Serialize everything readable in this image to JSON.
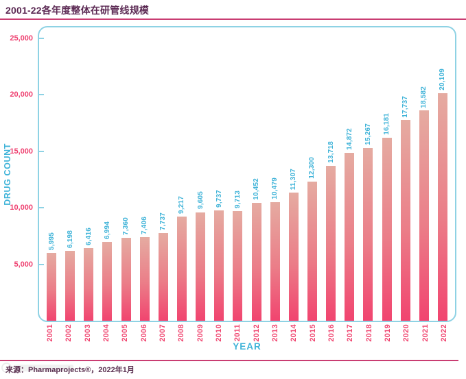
{
  "page": {
    "title": "2001-22各年度整体在研管线规模",
    "source_text": "来源：Pharmaprojects®，2022年1月"
  },
  "chart_data": {
    "type": "bar",
    "title": "2001-22各年度整体在研管线规模",
    "xlabel": "YEAR",
    "ylabel": "DRUG COUNT",
    "categories": [
      "2001",
      "2002",
      "2003",
      "2004",
      "2005",
      "2006",
      "2007",
      "2008",
      "2009",
      "2010",
      "2011",
      "2012",
      "2013",
      "2014",
      "2015",
      "2016",
      "2017",
      "2018",
      "2019",
      "2020",
      "2021",
      "2022"
    ],
    "values": [
      5995,
      6198,
      6416,
      6994,
      7360,
      7406,
      7737,
      9217,
      9605,
      9737,
      9713,
      10452,
      10479,
      11307,
      12300,
      13718,
      14872,
      15267,
      16181,
      17737,
      18582,
      20109
    ],
    "value_labels": [
      "5,995",
      "6,198",
      "6,416",
      "6,994",
      "7,360",
      "7,406",
      "7,737",
      "9,217",
      "9,605",
      "9,737",
      "9,713",
      "10,452",
      "10,479",
      "11,307",
      "12,300",
      "13,718",
      "14,872",
      "15,267",
      "16,181",
      "17,737",
      "18,582",
      "20,109"
    ],
    "ylim": [
      0,
      25000
    ],
    "yticks": [
      5000,
      10000,
      15000,
      20000,
      25000
    ],
    "ytick_labels": [
      "5,000",
      "10,000",
      "15,000",
      "20,000",
      "25,000"
    ],
    "grid": false,
    "legend": null,
    "bar_label_rotation": "vertical",
    "xtick_rotation": "vertical",
    "colors": {
      "bar_top": "#e5aba1",
      "bar_bottom": "#f1446f",
      "frame_border": "#8ed2e4",
      "ytick_label": "#ee3f6f",
      "xtick_label": "#f0436e",
      "value_label": "#3fb3d8",
      "axis_title": "#3fb3d8",
      "title_text": "#5b2953",
      "rule": "#c93d72",
      "source_text": "#5a3050"
    }
  }
}
